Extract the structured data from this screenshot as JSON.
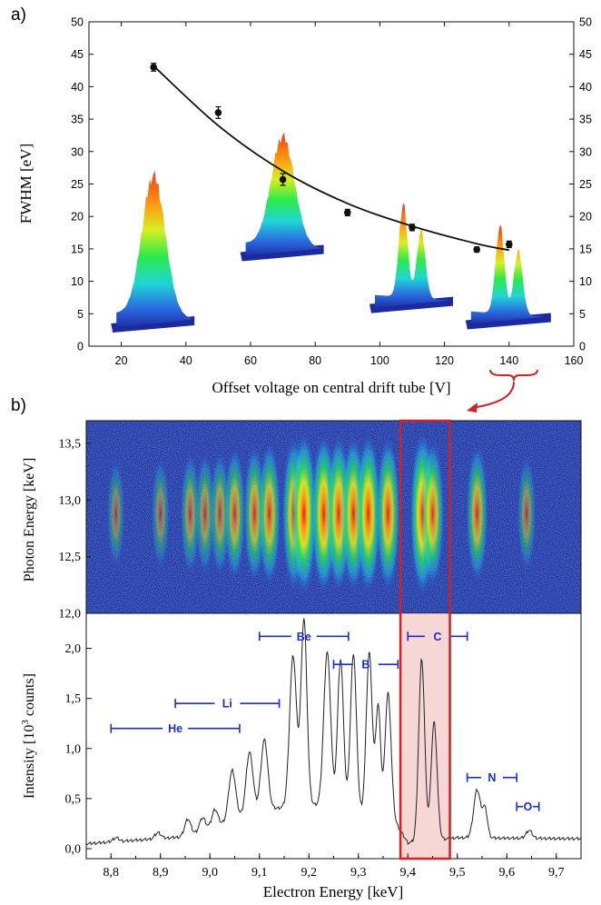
{
  "panel_a": {
    "label": "a)",
    "chart_data": {
      "type": "scatter",
      "xlabel": "Offset voltage on central drift tube [V]",
      "ylabel": "FWHM [eV]",
      "xlim": [
        10,
        160
      ],
      "ylim": [
        0,
        50
      ],
      "xticks": [
        "20",
        "40",
        "60",
        "80",
        "100",
        "120",
        "140",
        "160"
      ],
      "yticks": [
        "0",
        "5",
        "10",
        "15",
        "20",
        "25",
        "30",
        "35",
        "40",
        "45",
        "50"
      ],
      "series": [
        {
          "x": [
            30,
            50,
            70,
            90,
            110,
            130,
            140
          ],
          "y": [
            43,
            36,
            25.7,
            20.6,
            18.3,
            14.9,
            15.7
          ],
          "yerr": [
            0.6,
            0.9,
            0.9,
            0.5,
            0.5,
            0.4,
            0.5
          ]
        }
      ],
      "fit_curve": {
        "x": [
          30,
          50,
          70,
          90,
          110,
          130,
          140
        ],
        "y": [
          43.2,
          34.0,
          27.0,
          22.0,
          18.5,
          15.8,
          14.8
        ]
      },
      "inset_spectra_centered_x": [
        30,
        70,
        110,
        140
      ]
    }
  },
  "panel_b": {
    "label": "b)",
    "top": {
      "chart_data": {
        "type": "heatmap",
        "ylabel": "Photon Energy [keV]",
        "ylim": [
          12.0,
          13.7
        ],
        "yticks": [
          "12,0",
          "12,5",
          "13,0",
          "13,5"
        ],
        "band_centers_keV": [
          8.81,
          8.9,
          8.96,
          8.99,
          9.02,
          9.05,
          9.09,
          9.12,
          9.17,
          9.19,
          9.23,
          9.26,
          9.29,
          9.32,
          9.36,
          9.43,
          9.45,
          9.54,
          9.64
        ],
        "band_intensity": [
          0.15,
          0.2,
          0.35,
          0.35,
          0.4,
          0.55,
          0.6,
          0.7,
          0.85,
          1.0,
          0.95,
          0.9,
          0.9,
          0.95,
          0.85,
          1.0,
          0.75,
          0.6,
          0.25
        ],
        "center_photon_keV": 12.88
      }
    },
    "bottom": {
      "chart_data": {
        "type": "line",
        "xlabel": "Electron Energy [keV]",
        "ylabel_prefix": "Intensity [10",
        "ylabel_sup": "3",
        "ylabel_suffix": " counts]",
        "xlim": [
          8.75,
          9.75
        ],
        "ylim": [
          -0.1,
          2.35
        ],
        "xticks": [
          "8,8",
          "8,9",
          "9,0",
          "9,1",
          "9,2",
          "9,3",
          "9,4",
          "9,5",
          "9,6",
          "9,7"
        ],
        "yticks": [
          "0,0",
          "0,5",
          "1,0",
          "1,5",
          "2,0"
        ],
        "peaks": [
          {
            "x": 8.81,
            "h": 0.04,
            "w": 0.006
          },
          {
            "x": 8.895,
            "h": 0.06,
            "w": 0.006
          },
          {
            "x": 8.955,
            "h": 0.17,
            "w": 0.006
          },
          {
            "x": 8.985,
            "h": 0.13,
            "w": 0.006
          },
          {
            "x": 9.01,
            "h": 0.17,
            "w": 0.006
          },
          {
            "x": 9.045,
            "h": 0.5,
            "w": 0.007
          },
          {
            "x": 9.08,
            "h": 0.62,
            "w": 0.007
          },
          {
            "x": 9.11,
            "h": 0.7,
            "w": 0.007
          },
          {
            "x": 9.168,
            "h": 1.5,
            "w": 0.007
          },
          {
            "x": 9.19,
            "h": 1.85,
            "w": 0.006
          },
          {
            "x": 9.237,
            "h": 1.55,
            "w": 0.007
          },
          {
            "x": 9.264,
            "h": 1.5,
            "w": 0.006
          },
          {
            "x": 9.29,
            "h": 1.58,
            "w": 0.006
          },
          {
            "x": 9.322,
            "h": 1.62,
            "w": 0.006
          },
          {
            "x": 9.34,
            "h": 1.1,
            "w": 0.005
          },
          {
            "x": 9.36,
            "h": 1.25,
            "w": 0.006
          },
          {
            "x": 9.428,
            "h": 1.82,
            "w": 0.006
          },
          {
            "x": 9.453,
            "h": 1.18,
            "w": 0.006
          },
          {
            "x": 9.54,
            "h": 0.48,
            "w": 0.007
          },
          {
            "x": 9.556,
            "h": 0.28,
            "w": 0.005
          },
          {
            "x": 9.645,
            "h": 0.08,
            "w": 0.006
          }
        ],
        "baseline": [
          {
            "x": 8.75,
            "y": 0.05
          },
          {
            "x": 8.95,
            "y": 0.12
          },
          {
            "x": 9.1,
            "y": 0.38
          },
          {
            "x": 9.2,
            "y": 0.45
          },
          {
            "x": 9.37,
            "y": 0.3
          },
          {
            "x": 9.4,
            "y": 0.06
          },
          {
            "x": 9.5,
            "y": 0.11
          },
          {
            "x": 9.75,
            "y": 0.1
          }
        ],
        "bracket_color": "#1a2ecc",
        "brackets": [
          {
            "label": "Be",
            "x0": 9.1,
            "x1": 9.28,
            "y": 2.12
          },
          {
            "label": "C",
            "x0": 9.4,
            "x1": 9.52,
            "y": 2.12
          },
          {
            "label": "B",
            "x0": 9.25,
            "x1": 9.38,
            "y": 1.84
          },
          {
            "label": "Li",
            "x0": 8.93,
            "x1": 9.14,
            "y": 1.45
          },
          {
            "label": "He",
            "x0": 8.8,
            "x1": 9.06,
            "y": 1.2
          },
          {
            "label": "N",
            "x0": 9.52,
            "x1": 9.62,
            "y": 0.71
          },
          {
            "label": "O",
            "x0": 9.62,
            "x1": 9.665,
            "y": 0.42
          }
        ]
      }
    },
    "highlight": {
      "color": "#d42020",
      "x0": 9.385,
      "x1": 9.485
    }
  }
}
